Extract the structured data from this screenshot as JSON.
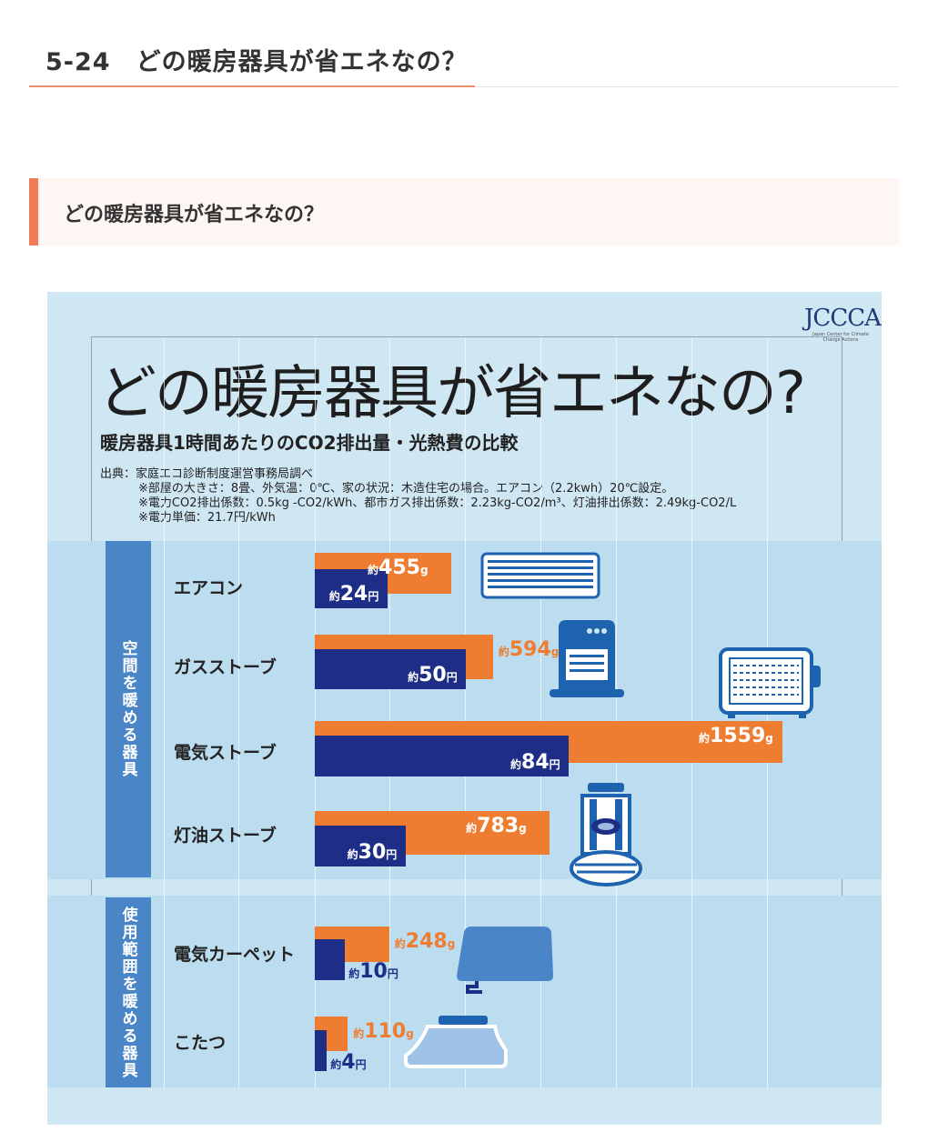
{
  "page": {
    "title": "5-24　どの暖房器具が省エネなの？",
    "section_heading": "どの暖房器具が省エネなの？"
  },
  "infographic": {
    "logo": "JCCCA",
    "logo_sub": "Japan Center for Climate Change Actions",
    "title": "どの暖房器具が省エネなの?",
    "subtitle": "暖房器具1時間あたりのCO2排出量・光熱費の比較",
    "source": "出典：家庭エコ診断制度運営事務局調べ",
    "notes": [
      "※部屋の大きさ：8畳、外気温：0℃、家の状況：木造住宅の場合。エアコン（2.2kwh）20℃設定。",
      "※電力CO2排出係数：0.5kg -CO2/kWh、都市ガス排出係数：2.23kg-CO2/m³、灯油排出係数：2.49kg-CO2/L",
      "※電力単価：21.7円/kWh"
    ],
    "approx_prefix": "約",
    "co2_unit": "g",
    "cost_unit": "円",
    "category_space": "空間を暖める器具",
    "category_area": "使用範囲を暖める器具"
  },
  "chart_data": {
    "type": "bar",
    "title": "暖房器具1時間あたりのCO2排出量・光熱費の比較",
    "categories": [
      "エアコン",
      "ガスストーブ",
      "電気ストーブ",
      "灯油ストーブ",
      "電気カーペット",
      "こたつ"
    ],
    "groups": [
      {
        "name": "空間を暖める器具",
        "items": [
          "エアコン",
          "ガスストーブ",
          "電気ストーブ",
          "灯油ストーブ"
        ]
      },
      {
        "name": "使用範囲を暖める器具",
        "items": [
          "電気カーペット",
          "こたつ"
        ]
      }
    ],
    "series": [
      {
        "values": [
          455,
          594,
          1559,
          783,
          248,
          110
        ],
        "unit": "g",
        "color": "#ef7d31"
      },
      {
        "values": [
          24,
          50,
          84,
          30,
          10,
          4
        ],
        "unit": "円",
        "color": "#1e2e86"
      }
    ],
    "grid": true,
    "legend": "none"
  }
}
